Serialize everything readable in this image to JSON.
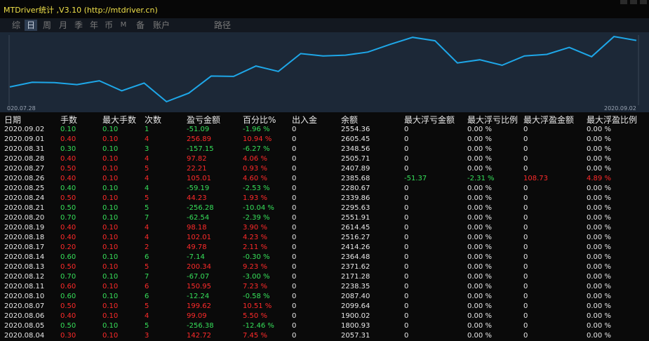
{
  "window": {
    "title": "MTDriver统计 ,V3.10 (http://mtdriver.cn)"
  },
  "tabs": [
    {
      "label": "综",
      "active": false
    },
    {
      "label": "日",
      "active": true
    },
    {
      "label": "周",
      "active": false
    },
    {
      "label": "月",
      "active": false
    },
    {
      "label": "季",
      "active": false
    },
    {
      "label": "年",
      "active": false
    },
    {
      "label": "币",
      "active": false
    },
    {
      "label": "M",
      "active": false
    },
    {
      "label": "备",
      "active": false
    },
    {
      "label": "账户",
      "active": false
    },
    {
      "label": "路径",
      "active": false
    }
  ],
  "chart_data": {
    "type": "line",
    "start_label": "020.07.28",
    "end_label": "2020.09.02",
    "color": "#1ea7e8",
    "values": [
      1800,
      1830,
      1828,
      1815,
      1840,
      1775,
      1825,
      1705,
      1760,
      1870,
      1868,
      1935,
      1900,
      2015,
      2000,
      2005,
      2025,
      2075,
      2120,
      2098,
      1955,
      1975,
      1940,
      2000,
      2010,
      2055,
      1995,
      2125,
      2100
    ]
  },
  "table": {
    "headers": [
      "日期",
      "手数",
      "最大手数",
      "次数",
      "盈亏金额",
      "百分比%",
      "出入金",
      "余额",
      "最大浮亏金额",
      "最大浮亏比例",
      "最大浮盈金额",
      "最大浮盈比例"
    ],
    "rows": [
      [
        "2020.09.02",
        "0.10",
        "0.10",
        "1",
        "-51.09",
        "-1.96 %",
        "0",
        "2554.36",
        "0",
        "0.00 %",
        "0",
        "0.00 %"
      ],
      [
        "2020.09.01",
        "0.40",
        "0.10",
        "4",
        "256.89",
        "10.94 %",
        "0",
        "2605.45",
        "0",
        "0.00 %",
        "0",
        "0.00 %"
      ],
      [
        "2020.08.31",
        "0.30",
        "0.10",
        "3",
        "-157.15",
        "-6.27 %",
        "0",
        "2348.56",
        "0",
        "0.00 %",
        "0",
        "0.00 %"
      ],
      [
        "2020.08.28",
        "0.40",
        "0.10",
        "4",
        "97.82",
        "4.06 %",
        "0",
        "2505.71",
        "0",
        "0.00 %",
        "0",
        "0.00 %"
      ],
      [
        "2020.08.27",
        "0.50",
        "0.10",
        "5",
        "22.21",
        "0.93 %",
        "0",
        "2407.89",
        "0",
        "0.00 %",
        "0",
        "0.00 %"
      ],
      [
        "2020.08.26",
        "0.40",
        "0.10",
        "4",
        "105.01",
        "4.60 %",
        "0",
        "2385.68",
        "-51.37",
        "-2.31 %",
        "108.73",
        "4.89 %"
      ],
      [
        "2020.08.25",
        "0.40",
        "0.10",
        "4",
        "-59.19",
        "-2.53 %",
        "0",
        "2280.67",
        "0",
        "0.00 %",
        "0",
        "0.00 %"
      ],
      [
        "2020.08.24",
        "0.50",
        "0.10",
        "5",
        "44.23",
        "1.93 %",
        "0",
        "2339.86",
        "0",
        "0.00 %",
        "0",
        "0.00 %"
      ],
      [
        "2020.08.21",
        "0.50",
        "0.10",
        "5",
        "-256.28",
        "-10.04 %",
        "0",
        "2295.63",
        "0",
        "0.00 %",
        "0",
        "0.00 %"
      ],
      [
        "2020.08.20",
        "0.70",
        "0.10",
        "7",
        "-62.54",
        "-2.39 %",
        "0",
        "2551.91",
        "0",
        "0.00 %",
        "0",
        "0.00 %"
      ],
      [
        "2020.08.19",
        "0.40",
        "0.10",
        "4",
        "98.18",
        "3.90 %",
        "0",
        "2614.45",
        "0",
        "0.00 %",
        "0",
        "0.00 %"
      ],
      [
        "2020.08.18",
        "0.40",
        "0.10",
        "4",
        "102.01",
        "4.23 %",
        "0",
        "2516.27",
        "0",
        "0.00 %",
        "0",
        "0.00 %"
      ],
      [
        "2020.08.17",
        "0.20",
        "0.10",
        "2",
        "49.78",
        "2.11 %",
        "0",
        "2414.26",
        "0",
        "0.00 %",
        "0",
        "0.00 %"
      ],
      [
        "2020.08.14",
        "0.60",
        "0.10",
        "6",
        "-7.14",
        "-0.30 %",
        "0",
        "2364.48",
        "0",
        "0.00 %",
        "0",
        "0.00 %"
      ],
      [
        "2020.08.13",
        "0.50",
        "0.10",
        "5",
        "200.34",
        "9.23 %",
        "0",
        "2371.62",
        "0",
        "0.00 %",
        "0",
        "0.00 %"
      ],
      [
        "2020.08.12",
        "0.70",
        "0.10",
        "7",
        "-67.07",
        "-3.00 %",
        "0",
        "2171.28",
        "0",
        "0.00 %",
        "0",
        "0.00 %"
      ],
      [
        "2020.08.11",
        "0.60",
        "0.10",
        "6",
        "150.95",
        "7.23 %",
        "0",
        "2238.35",
        "0",
        "0.00 %",
        "0",
        "0.00 %"
      ],
      [
        "2020.08.10",
        "0.60",
        "0.10",
        "6",
        "-12.24",
        "-0.58 %",
        "0",
        "2087.40",
        "0",
        "0.00 %",
        "0",
        "0.00 %"
      ],
      [
        "2020.08.07",
        "0.50",
        "0.10",
        "5",
        "199.62",
        "10.51 %",
        "0",
        "2099.64",
        "0",
        "0.00 %",
        "0",
        "0.00 %"
      ],
      [
        "2020.08.06",
        "0.40",
        "0.10",
        "4",
        "99.09",
        "5.50 %",
        "0",
        "1900.02",
        "0",
        "0.00 %",
        "0",
        "0.00 %"
      ],
      [
        "2020.08.05",
        "0.50",
        "0.10",
        "5",
        "-256.38",
        "-12.46 %",
        "0",
        "1800.93",
        "0",
        "0.00 %",
        "0",
        "0.00 %"
      ],
      [
        "2020.08.04",
        "0.30",
        "0.10",
        "3",
        "142.72",
        "7.45 %",
        "0",
        "2057.31",
        "0",
        "0.00 %",
        "0",
        "0.00 %"
      ]
    ]
  }
}
